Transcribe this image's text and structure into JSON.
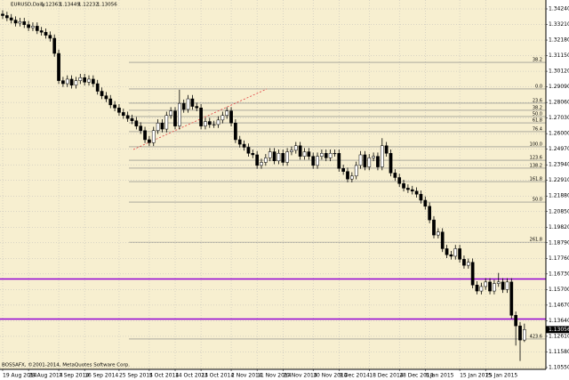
{
  "chart_data": {
    "type": "candlestick",
    "title": "EURUSD,Daily",
    "footer": "BOSSAFX, ©2001-2014, MetaQuotes Software Corp.",
    "categories": [
      "19 Aug 2014",
      null,
      null,
      null,
      null,
      null,
      "28 Aug 2014",
      null,
      null,
      null,
      null,
      null,
      null,
      "7 Sep 2014",
      null,
      null,
      null,
      null,
      null,
      "16 Sep 2014",
      null,
      null,
      null,
      null,
      null,
      null,
      null,
      "25 Sep 2014",
      null,
      null,
      null,
      null,
      null,
      null,
      "5 Oct 2014",
      null,
      null,
      null,
      null,
      null,
      "14 Oct 2014",
      null,
      null,
      null,
      null,
      null,
      "23 Oct 2014",
      null,
      null,
      null,
      null,
      null,
      null,
      "2 Nov 2014",
      null,
      null,
      null,
      null,
      null,
      "11 Nov 2014",
      null,
      null,
      null,
      null,
      null,
      "20 Nov 2014",
      null,
      null,
      null,
      null,
      null,
      null,
      "30 Nov 2014",
      null,
      null,
      null,
      null,
      null,
      "9 Dec 2014",
      null,
      null,
      null,
      null,
      null,
      null,
      "18 Dec 2014",
      null,
      null,
      null,
      null,
      null,
      null,
      "28 Dec 2014",
      null,
      null,
      null,
      null,
      null,
      "6 Jan 2015",
      null,
      null,
      null,
      null,
      null,
      null,
      null,
      "15 Jan 2015",
      null,
      null,
      null,
      null,
      null,
      "25 Jan 2015",
      null,
      null,
      null,
      null,
      null,
      null,
      null,
      null,
      null
    ],
    "open": [
      1.339,
      1.338,
      1.3365,
      1.335,
      1.333,
      1.334,
      1.332,
      1.33,
      1.331,
      1.328,
      1.327,
      1.325,
      1.323,
      1.313,
      1.295,
      1.293,
      1.296,
      1.292,
      1.295,
      1.297,
      1.294,
      1.296,
      1.293,
      1.288,
      1.285,
      1.283,
      1.279,
      1.277,
      1.274,
      1.272,
      1.27,
      1.2685,
      1.265,
      1.262,
      1.256,
      1.254,
      1.262,
      1.267,
      1.263,
      1.272,
      1.275,
      1.265,
      1.28,
      1.276,
      1.283,
      1.278,
      1.277,
      1.265,
      1.268,
      1.266,
      1.266,
      1.269,
      1.272,
      1.275,
      1.267,
      1.256,
      1.253,
      1.251,
      1.247,
      1.246,
      1.239,
      1.241,
      1.244,
      1.248,
      1.242,
      1.247,
      1.241,
      1.248,
      1.249,
      1.252,
      1.245,
      1.248,
      1.245,
      1.239,
      1.245,
      1.247,
      1.244,
      1.247,
      1.247,
      1.237,
      1.235,
      1.23,
      1.232,
      1.239,
      1.246,
      1.238,
      1.244,
      1.245,
      1.238,
      1.252,
      1.247,
      1.234,
      1.231,
      1.227,
      1.224,
      1.223,
      1.222,
      1.22,
      1.216,
      1.212,
      1.203,
      1.193,
      1.195,
      1.184,
      1.18,
      1.179,
      1.184,
      1.177,
      1.173,
      1.175,
      1.16,
      1.156,
      1.159,
      1.162,
      1.156,
      1.161,
      1.162,
      1.157,
      1.162,
      1.14,
      1.133,
      1.12363
    ],
    "high": [
      1.3415,
      1.3405,
      1.339,
      1.3375,
      1.3365,
      1.3365,
      1.3345,
      1.3335,
      1.3335,
      1.3305,
      1.3295,
      1.3275,
      1.3255,
      1.3155,
      1.2975,
      1.2985,
      1.2985,
      1.2975,
      1.2995,
      1.2995,
      1.2985,
      1.2985,
      1.2955,
      1.2905,
      1.2875,
      1.2855,
      1.2815,
      1.2795,
      1.2765,
      1.2745,
      1.2725,
      1.271,
      1.2675,
      1.2645,
      1.2585,
      1.2645,
      1.2695,
      1.2695,
      1.2745,
      1.2775,
      1.2775,
      1.289,
      1.2825,
      1.2855,
      1.2855,
      1.2805,
      1.2795,
      1.2705,
      1.2705,
      1.2685,
      1.2715,
      1.2745,
      1.2775,
      1.2775,
      1.2695,
      1.2585,
      1.2555,
      1.2535,
      1.2495,
      1.2485,
      1.2435,
      1.2465,
      1.2505,
      1.2505,
      1.2495,
      1.2495,
      1.2505,
      1.2515,
      1.2545,
      1.2545,
      1.2505,
      1.2505,
      1.2475,
      1.2475,
      1.2495,
      1.2495,
      1.2495,
      1.2495,
      1.2495,
      1.2395,
      1.2375,
      1.2345,
      1.2415,
      1.2485,
      1.2485,
      1.2465,
      1.2475,
      1.2475,
      1.257,
      1.2545,
      1.2495,
      1.2365,
      1.2335,
      1.2295,
      1.2265,
      1.2255,
      1.2245,
      1.2225,
      1.2185,
      1.2145,
      1.2055,
      1.1975,
      1.1975,
      1.1865,
      1.1825,
      1.1865,
      1.1865,
      1.1795,
      1.1775,
      1.1775,
      1.1625,
      1.1615,
      1.1645,
      1.1645,
      1.1635,
      1.168,
      1.1645,
      1.1645,
      1.1645,
      1.1425,
      1.1355,
      1.13449
    ],
    "low": [
      1.3358,
      1.3343,
      1.3328,
      1.3308,
      1.3308,
      1.3298,
      1.3278,
      1.3278,
      1.3258,
      1.3248,
      1.3228,
      1.3208,
      1.3108,
      1.2928,
      1.2908,
      1.2908,
      1.2898,
      1.2898,
      1.2928,
      1.2918,
      1.2918,
      1.2908,
      1.2858,
      1.2828,
      1.2808,
      1.2768,
      1.2748,
      1.2718,
      1.2698,
      1.2678,
      1.2663,
      1.2628,
      1.2598,
      1.2538,
      1.2518,
      1.2518,
      1.2598,
      1.2608,
      1.2608,
      1.2698,
      1.2628,
      1.2628,
      1.2738,
      1.2738,
      1.2758,
      1.2748,
      1.2628,
      1.2628,
      1.2638,
      1.2638,
      1.2638,
      1.2668,
      1.2698,
      1.2648,
      1.2538,
      1.2508,
      1.2488,
      1.2448,
      1.2438,
      1.2368,
      1.2368,
      1.2388,
      1.2418,
      1.2398,
      1.2398,
      1.2388,
      1.2388,
      1.2458,
      1.2468,
      1.2428,
      1.2428,
      1.2428,
      1.2368,
      1.2368,
      1.2428,
      1.2418,
      1.2418,
      1.2448,
      1.2348,
      1.2328,
      1.2278,
      1.2278,
      1.2298,
      1.2368,
      1.2358,
      1.2358,
      1.2418,
      1.2358,
      1.2358,
      1.2448,
      1.2318,
      1.2288,
      1.2248,
      1.2218,
      1.2208,
      1.2198,
      1.2178,
      1.2138,
      1.2098,
      1.2008,
      1.1908,
      1.1908,
      1.1818,
      1.1778,
      1.1768,
      1.1768,
      1.1748,
      1.1708,
      1.1708,
      1.1578,
      1.1538,
      1.1538,
      1.1568,
      1.1538,
      1.1538,
      1.1588,
      1.1548,
      1.1548,
      1.1378,
      1.12,
      1.1098,
      1.12232
    ],
    "close": [
      1.338,
      1.3365,
      1.335,
      1.333,
      1.334,
      1.332,
      1.33,
      1.331,
      1.328,
      1.327,
      1.325,
      1.323,
      1.313,
      1.295,
      1.293,
      1.296,
      1.292,
      1.295,
      1.297,
      1.294,
      1.296,
      1.293,
      1.288,
      1.285,
      1.283,
      1.279,
      1.277,
      1.274,
      1.272,
      1.27,
      1.2685,
      1.265,
      1.262,
      1.256,
      1.254,
      1.262,
      1.267,
      1.263,
      1.272,
      1.275,
      1.265,
      1.28,
      1.276,
      1.283,
      1.278,
      1.277,
      1.265,
      1.268,
      1.266,
      1.266,
      1.269,
      1.272,
      1.275,
      1.267,
      1.256,
      1.253,
      1.251,
      1.247,
      1.246,
      1.239,
      1.241,
      1.244,
      1.248,
      1.242,
      1.247,
      1.241,
      1.248,
      1.249,
      1.252,
      1.245,
      1.248,
      1.245,
      1.239,
      1.245,
      1.247,
      1.244,
      1.247,
      1.247,
      1.237,
      1.235,
      1.23,
      1.232,
      1.239,
      1.246,
      1.238,
      1.244,
      1.245,
      1.238,
      1.252,
      1.247,
      1.234,
      1.231,
      1.227,
      1.224,
      1.223,
      1.222,
      1.22,
      1.216,
      1.212,
      1.203,
      1.193,
      1.195,
      1.184,
      1.18,
      1.179,
      1.184,
      1.177,
      1.173,
      1.175,
      1.16,
      1.156,
      1.159,
      1.162,
      1.156,
      1.161,
      1.162,
      1.157,
      1.162,
      1.14,
      1.133,
      1.12363,
      1.13056
    ],
    "ylim": [
      1.1043,
      1.34828
    ],
    "yticks": [
      {
        "value": 1.3424,
        "label": "1.34240"
      },
      {
        "value": 1.3321,
        "label": "1.33210"
      },
      {
        "value": 1.3218,
        "label": "1.32180"
      },
      {
        "value": 1.3115,
        "label": "1.31150"
      },
      {
        "value": 1.3012,
        "label": "1.30120"
      },
      {
        "value": 1.2909,
        "label": "1.29090"
      },
      {
        "value": 1.2806,
        "label": "1.28060"
      },
      {
        "value": 1.2703,
        "label": "1.27030"
      },
      {
        "value": 1.26,
        "label": "1.26000"
      },
      {
        "value": 1.2497,
        "label": "1.24970"
      },
      {
        "value": 1.2394,
        "label": "1.23940"
      },
      {
        "value": 1.2291,
        "label": "1.22910"
      },
      {
        "value": 1.2188,
        "label": "1.21880"
      },
      {
        "value": 1.2085,
        "label": "1.20850"
      },
      {
        "value": 1.1982,
        "label": "1.19820"
      },
      {
        "value": 1.1879,
        "label": "1.18790"
      },
      {
        "value": 1.1776,
        "label": "1.17760"
      },
      {
        "value": 1.1673,
        "label": "1.16730"
      },
      {
        "value": 1.157,
        "label": "1.15700"
      },
      {
        "value": 1.1467,
        "label": "1.14670"
      },
      {
        "value": 1.1364,
        "label": "1.13640"
      },
      {
        "value": 1.1261,
        "label": "1.12610"
      },
      {
        "value": 1.1158,
        "label": "1.11580"
      },
      {
        "value": 1.1055,
        "label": "1.10550"
      }
    ],
    "grid": true,
    "hlines": [
      1.164,
      1.1375
    ],
    "hline_color": "#9400d3",
    "fibo_levels": [
      {
        "value": 1.3071,
        "label": "38.2"
      },
      {
        "value": 1.2895,
        "label": "0.0"
      },
      {
        "value": 1.2801,
        "label": "23.6"
      },
      {
        "value": 1.2754,
        "label": "38.2"
      },
      {
        "value": 1.2713,
        "label": "50.0"
      },
      {
        "value": 1.2671,
        "label": "61.8"
      },
      {
        "value": 1.2613,
        "label": "76.4"
      },
      {
        "value": 1.2513,
        "label": "100.0"
      },
      {
        "value": 1.2424,
        "label": "123.6"
      },
      {
        "value": 1.2372,
        "label": "138.2"
      },
      {
        "value": 1.2283,
        "label": "161.8"
      },
      {
        "value": 1.2148,
        "label": "50.0"
      },
      {
        "value": 1.1883,
        "label": "261.8"
      },
      {
        "value": 1.1243,
        "label": "423.6"
      }
    ]
  }
}
